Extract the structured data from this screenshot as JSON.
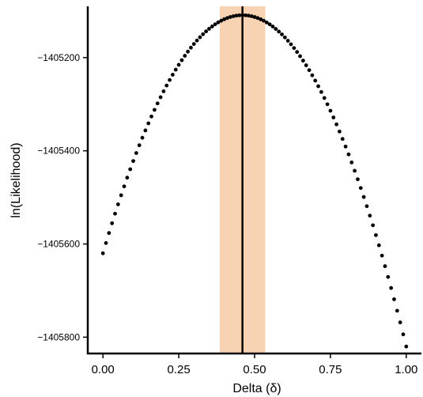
{
  "chart_data": {
    "type": "scatter",
    "xlabel": "Delta (δ)",
    "ylabel": "ln(Likelihood)",
    "xlim": [
      -0.05,
      1.05
    ],
    "ylim": [
      -1405835,
      -1405090
    ],
    "x_ticks": [
      {
        "value": 0.0,
        "label": "0.00"
      },
      {
        "value": 0.25,
        "label": "0.25"
      },
      {
        "value": 0.5,
        "label": "0.50"
      },
      {
        "value": 0.75,
        "label": "0.75"
      },
      {
        "value": 1.0,
        "label": "1.00"
      }
    ],
    "y_ticks": [
      {
        "value": -1405200,
        "label": "−1405200"
      },
      {
        "value": -1405400,
        "label": "−1405400"
      },
      {
        "value": -1405600,
        "label": "−1405600"
      },
      {
        "value": -1405800,
        "label": "−1405800"
      }
    ],
    "curve": {
      "x_start": 0.0,
      "x_end": 1.0,
      "n_points": 101,
      "peak_x": 0.46,
      "peak_y": -1405109,
      "y_at_x0": -1405620,
      "y_at_x1": -1405820
    },
    "vertical_line": {
      "x": 0.46,
      "color": "#000000"
    },
    "interval_band": {
      "x_min": 0.385,
      "x_max": 0.535,
      "color": "#F8D3B3"
    },
    "point_color": "#000000",
    "grid": false,
    "legend": "none"
  }
}
